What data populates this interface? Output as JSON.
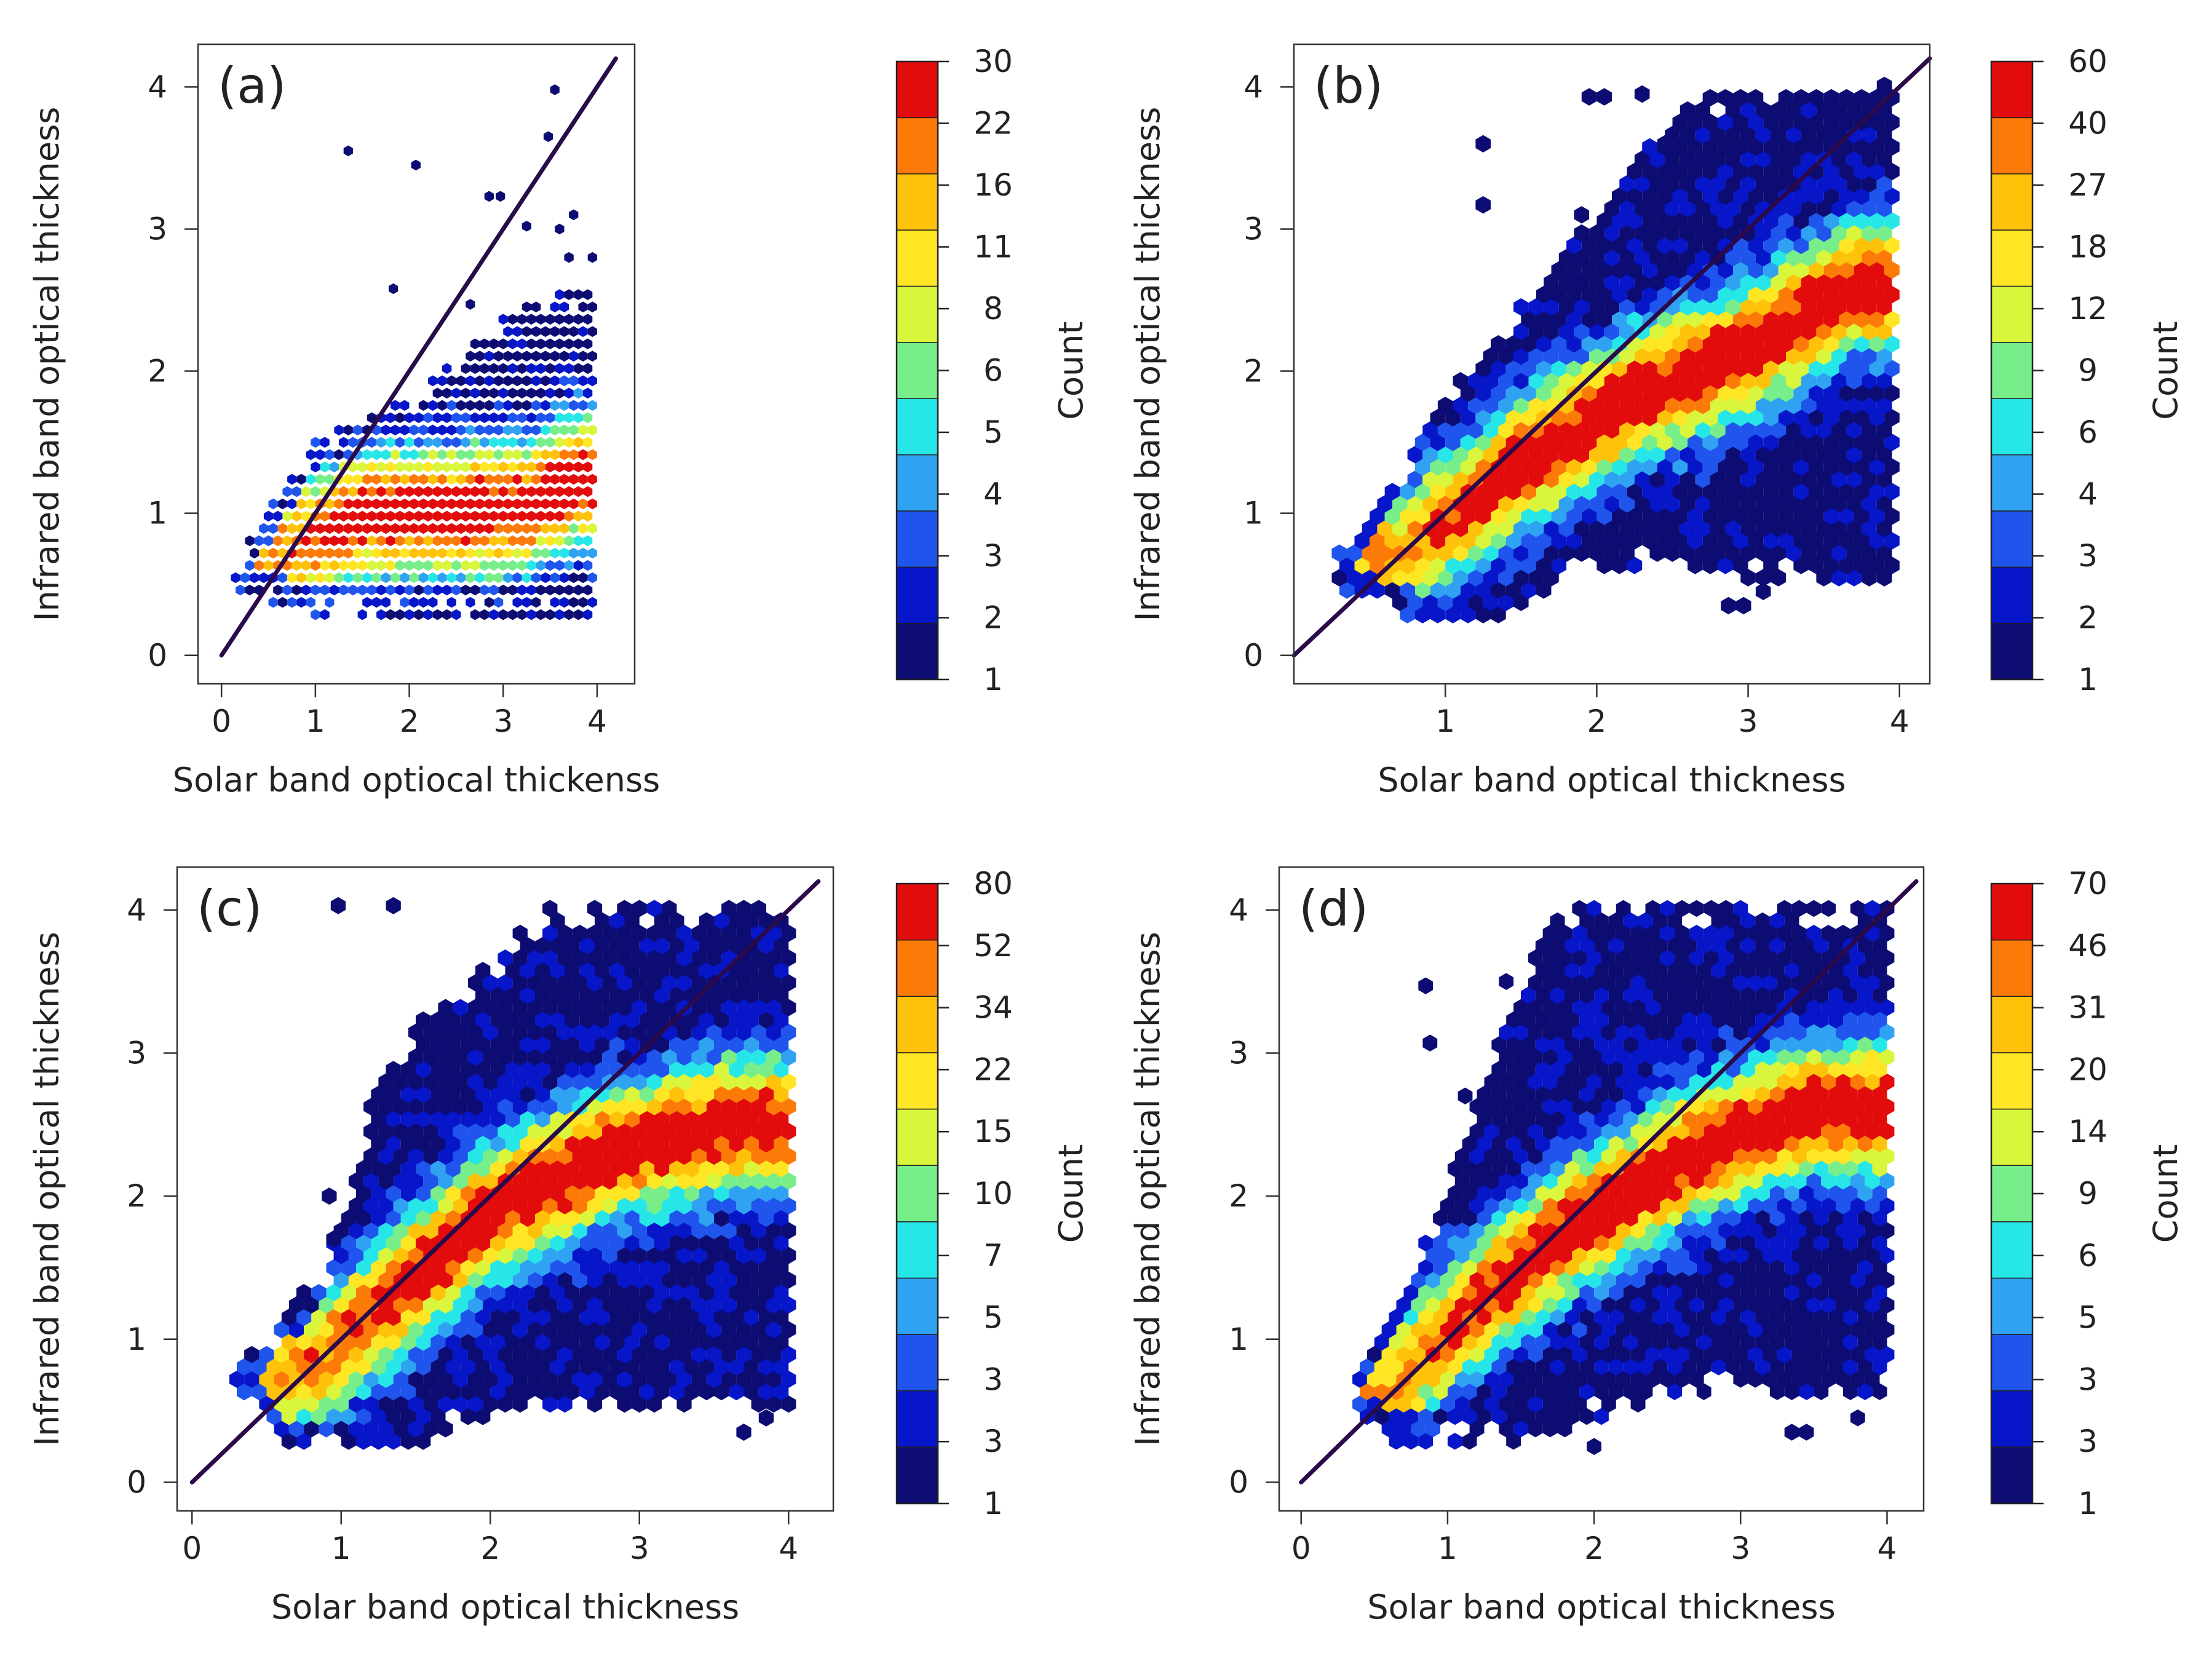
{
  "chart_data": [
    {
      "type": "hexbin",
      "panel_label": "(a)",
      "xlabel": "Solar band optiocal thickenss",
      "ylabel": "Infrared band optical thickness",
      "xlim": [
        -0.25,
        4.4
      ],
      "ylim": [
        -0.2,
        4.3
      ],
      "xticks": [
        "0",
        "1",
        "2",
        "3",
        "4"
      ],
      "yticks": [
        "0",
        "1",
        "2",
        "3",
        "4"
      ],
      "colorbar_title": "Count",
      "colorbar_labels": [
        "1",
        "2",
        "3",
        "4",
        "5",
        "6",
        "8",
        "11",
        "16",
        "22",
        "30"
      ],
      "identity_line": {
        "from": [
          0,
          0
        ],
        "to": [
          4.2,
          4.2
        ]
      },
      "density_ridge": [
        [
          0.6,
          0.7
        ],
        [
          1.5,
          1.0
        ],
        [
          2.5,
          1.0
        ],
        [
          3.3,
          1.05
        ],
        [
          3.8,
          1.25
        ]
      ],
      "support": {
        "x": [
          0.15,
          4.0
        ],
        "y_bottom": [
          [
            0.15,
            0.45
          ],
          [
            1.0,
            0.3
          ],
          [
            4.0,
            0.3
          ]
        ],
        "y_top": [
          [
            0.15,
            0.65
          ],
          [
            1.0,
            1.5
          ],
          [
            2.0,
            1.8
          ],
          [
            3.0,
            2.4
          ],
          [
            4.0,
            2.6
          ]
        ]
      },
      "outliers": [
        [
          1.35,
          3.55
        ],
        [
          2.07,
          3.45
        ],
        [
          1.83,
          2.58
        ],
        [
          2.85,
          3.23
        ],
        [
          2.97,
          3.23
        ],
        [
          3.48,
          3.65
        ],
        [
          3.55,
          3.98
        ],
        [
          3.25,
          3.02
        ],
        [
          3.6,
          3.0
        ],
        [
          3.75,
          3.1
        ],
        [
          3.7,
          2.8
        ],
        [
          3.95,
          2.8
        ],
        [
          2.65,
          2.47
        ]
      ]
    },
    {
      "type": "hexbin",
      "panel_label": "(b)",
      "xlabel": "Solar band optical thickness",
      "ylabel": "Infrared band optical thickness",
      "xlim": [
        0.0,
        4.2
      ],
      "ylim": [
        -0.2,
        4.3
      ],
      "xticks": [
        "1",
        "2",
        "3",
        "4"
      ],
      "yticks": [
        "0",
        "1",
        "2",
        "3",
        "4"
      ],
      "colorbar_title": "Count",
      "colorbar_labels": [
        "1",
        "2",
        "3",
        "4",
        "6",
        "9",
        "12",
        "18",
        "27",
        "40",
        "60"
      ],
      "identity_line": {
        "from": [
          0,
          0
        ],
        "to": [
          4.2,
          4.2
        ]
      },
      "density_ridge": [
        [
          0.7,
          0.7
        ],
        [
          1.5,
          1.35
        ],
        [
          2.2,
          1.8
        ],
        [
          3.0,
          2.15
        ],
        [
          3.7,
          2.6
        ]
      ],
      "support": {
        "x": [
          0.3,
          4.0
        ],
        "y_bottom": [
          [
            0.3,
            0.45
          ],
          [
            0.8,
            0.25
          ],
          [
            1.3,
            0.25
          ],
          [
            2.0,
            0.65
          ],
          [
            4.0,
            0.45
          ]
        ],
        "y_top": [
          [
            0.3,
            0.7
          ],
          [
            1.0,
            1.8
          ],
          [
            2.0,
            3.1
          ],
          [
            2.6,
            3.9
          ],
          [
            4.0,
            4.0
          ]
        ]
      },
      "outliers": [
        [
          1.25,
          3.6
        ],
        [
          1.25,
          3.17
        ],
        [
          1.95,
          3.93
        ],
        [
          2.05,
          3.93
        ],
        [
          2.3,
          3.95
        ],
        [
          2.45,
          3.6
        ],
        [
          2.87,
          0.35
        ],
        [
          2.97,
          0.35
        ],
        [
          3.1,
          0.45
        ],
        [
          1.9,
          3.1
        ]
      ]
    },
    {
      "type": "hexbin",
      "panel_label": "(c)",
      "xlabel": "Solar band optical thickness",
      "ylabel": "Infrared band optical thickness",
      "xlim": [
        -0.1,
        4.3
      ],
      "ylim": [
        -0.2,
        4.3
      ],
      "xticks": [
        "0",
        "1",
        "2",
        "3",
        "4"
      ],
      "yticks": [
        "0",
        "1",
        "2",
        "3",
        "4"
      ],
      "colorbar_title": "Count",
      "colorbar_labels": [
        "1",
        "3",
        "3",
        "5",
        "7",
        "10",
        "15",
        "22",
        "34",
        "52",
        "80"
      ],
      "identity_line": {
        "from": [
          0,
          0
        ],
        "to": [
          4.2,
          4.2
        ]
      },
      "density_ridge": [
        [
          0.8,
          0.8
        ],
        [
          1.4,
          1.35
        ],
        [
          2.0,
          1.9
        ],
        [
          2.8,
          2.3
        ],
        [
          3.6,
          2.5
        ]
      ],
      "support": {
        "x": [
          0.3,
          4.05
        ],
        "y_bottom": [
          [
            0.3,
            0.7
          ],
          [
            0.65,
            0.25
          ],
          [
            1.5,
            0.25
          ],
          [
            2.0,
            0.5
          ],
          [
            4.05,
            0.5
          ]
        ],
        "y_top": [
          [
            0.3,
            0.75
          ],
          [
            0.9,
            1.5
          ],
          [
            1.3,
            3.0
          ],
          [
            2.4,
            4.0
          ],
          [
            4.05,
            4.0
          ]
        ]
      },
      "outliers": [
        [
          0.98,
          4.03
        ],
        [
          1.35,
          4.03
        ],
        [
          0.92,
          2.0
        ],
        [
          0.95,
          1.7
        ],
        [
          3.7,
          0.35
        ],
        [
          3.85,
          0.45
        ]
      ]
    },
    {
      "type": "hexbin",
      "panel_label": "(d)",
      "xlabel": "Solar band optical thickness",
      "ylabel": "Infrared band optical thickness",
      "xlim": [
        -0.15,
        4.25
      ],
      "ylim": [
        -0.2,
        4.3
      ],
      "xticks": [
        "0",
        "1",
        "2",
        "3",
        "4"
      ],
      "yticks": [
        "0",
        "1",
        "2",
        "3",
        "4"
      ],
      "colorbar_title": "Count",
      "colorbar_labels": [
        "1",
        "3",
        "3",
        "5",
        "6",
        "9",
        "14",
        "20",
        "31",
        "46",
        "70"
      ],
      "identity_line": {
        "from": [
          0,
          0
        ],
        "to": [
          4.2,
          4.2
        ]
      },
      "density_ridge": [
        [
          0.6,
          0.65
        ],
        [
          1.2,
          1.25
        ],
        [
          1.8,
          1.75
        ],
        [
          2.6,
          2.25
        ],
        [
          3.4,
          2.6
        ]
      ],
      "support": {
        "x": [
          0.3,
          4.05
        ],
        "y_bottom": [
          [
            0.3,
            0.45
          ],
          [
            0.6,
            0.3
          ],
          [
            1.6,
            0.3
          ],
          [
            2.4,
            0.6
          ],
          [
            4.05,
            0.6
          ]
        ],
        "y_top": [
          [
            0.3,
            0.65
          ],
          [
            0.8,
            1.55
          ],
          [
            1.3,
            3.0
          ],
          [
            1.75,
            4.0
          ],
          [
            4.05,
            4.0
          ]
        ]
      },
      "outliers": [
        [
          0.85,
          3.47
        ],
        [
          0.88,
          3.07
        ],
        [
          1.12,
          2.7
        ],
        [
          1.4,
          3.5
        ],
        [
          1.5,
          3.25
        ],
        [
          2.0,
          0.25
        ],
        [
          3.35,
          0.35
        ],
        [
          3.45,
          0.35
        ],
        [
          3.8,
          0.45
        ]
      ]
    }
  ],
  "colors": {
    "scale": [
      "#0d0c73",
      "#0616c8",
      "#1f55ec",
      "#30a2f2",
      "#27e6e8",
      "#77ee8a",
      "#d9f63c",
      "#fee625",
      "#fec20a",
      "#fb7a08",
      "#e20c0c"
    ],
    "line": "#2a0a4a",
    "frame": "#333333"
  }
}
